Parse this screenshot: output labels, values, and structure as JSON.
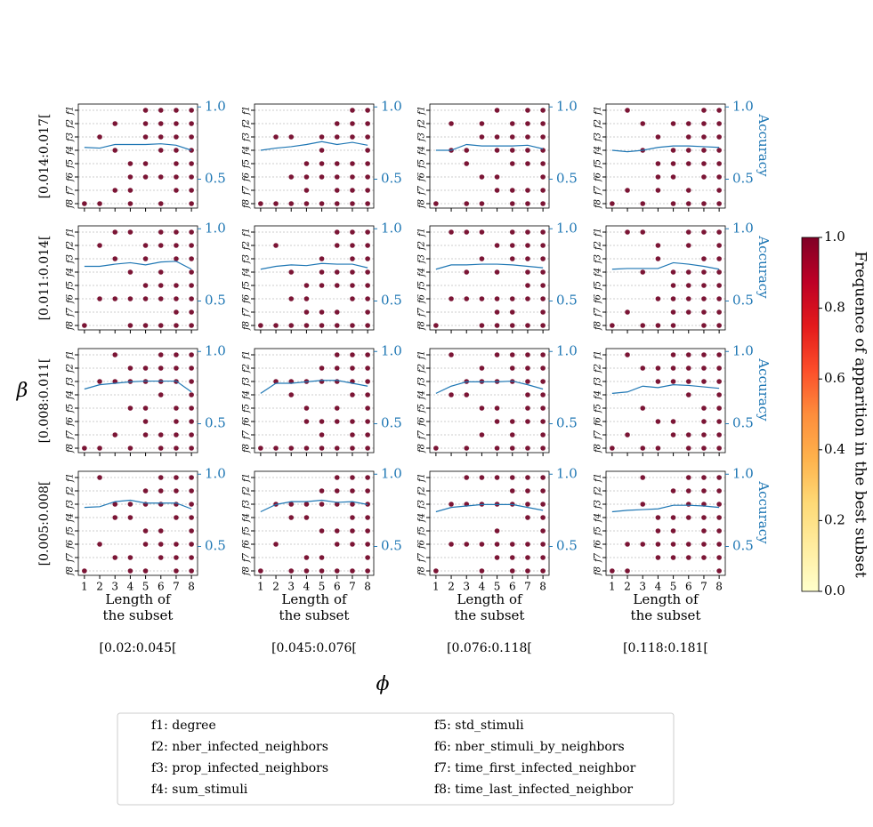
{
  "chart_data": {
    "type": "dot_matrix_grid",
    "row_axis_title": "β",
    "col_axis_title": "ϕ",
    "row_labels": [
      "[0.014:0.017[",
      "[0.011:0.014[",
      "[0.008:0.011[",
      "[0.005:0.008["
    ],
    "col_labels": [
      "[0.02:0.045[",
      "[0.045:0.076[",
      "[0.076:0.118[",
      "[0.118:0.181["
    ],
    "xlabel": [
      "Length of",
      "the subset"
    ],
    "y2label": "Accuracy",
    "xlim": [
      0.6,
      8.4
    ],
    "xticks": [
      1,
      2,
      3,
      4,
      5,
      6,
      7,
      8
    ],
    "feature_ticks": [
      "f1",
      "f2",
      "f3",
      "f4",
      "f5",
      "f6",
      "f7",
      "f8"
    ],
    "y2lim": [
      0.3,
      1.02
    ],
    "y2ticks": [
      0.5,
      {
        "value": 1,
        "label": "1.0"
      }
    ],
    "grid": true,
    "dot_color": "#7b1535",
    "line_color": "#1f77b4",
    "panels": [
      {
        "row": 0,
        "col": 0,
        "subsets": [
          [
            8
          ],
          [
            3,
            8
          ],
          [
            2,
            4,
            7
          ],
          [
            5,
            6,
            7,
            8
          ],
          [
            1,
            2,
            3,
            5,
            6
          ],
          [
            1,
            2,
            3,
            4,
            6,
            8
          ],
          [
            1,
            2,
            3,
            4,
            5,
            6,
            7
          ],
          [
            1,
            2,
            3,
            4,
            5,
            6,
            7,
            8
          ]
        ],
        "accuracy": [
          0.72,
          0.715,
          0.74,
          0.74,
          0.74,
          0.745,
          0.735,
          0.7
        ]
      },
      {
        "row": 0,
        "col": 1,
        "subsets": [
          [
            8
          ],
          [
            3,
            8
          ],
          [
            3,
            6,
            8
          ],
          [
            5,
            6,
            7,
            8
          ],
          [
            3,
            4,
            5,
            6,
            8
          ],
          [
            2,
            3,
            5,
            6,
            7,
            8
          ],
          [
            1,
            2,
            3,
            5,
            6,
            7,
            8
          ],
          [
            1,
            2,
            3,
            4,
            5,
            6,
            7,
            8
          ]
        ],
        "accuracy": [
          0.7,
          0.715,
          0.725,
          0.74,
          0.76,
          0.74,
          0.755,
          0.735
        ]
      },
      {
        "row": 0,
        "col": 2,
        "subsets": [
          [
            8
          ],
          [
            2,
            4
          ],
          [
            4,
            5,
            8
          ],
          [
            2,
            3,
            6,
            8
          ],
          [
            1,
            3,
            4,
            6,
            7
          ],
          [
            2,
            3,
            4,
            5,
            7,
            8
          ],
          [
            1,
            2,
            3,
            4,
            5,
            7,
            8
          ],
          [
            1,
            2,
            3,
            4,
            5,
            6,
            7,
            8
          ]
        ],
        "accuracy": [
          0.7,
          0.7,
          0.74,
          0.73,
          0.73,
          0.73,
          0.735,
          0.71
        ]
      },
      {
        "row": 0,
        "col": 3,
        "subsets": [
          [
            8
          ],
          [
            1,
            7
          ],
          [
            2,
            4,
            8
          ],
          [
            3,
            5,
            6,
            7
          ],
          [
            2,
            4,
            5,
            6,
            8
          ],
          [
            2,
            3,
            4,
            5,
            7,
            8
          ],
          [
            1,
            2,
            3,
            4,
            5,
            6,
            8
          ],
          [
            1,
            2,
            3,
            4,
            5,
            6,
            7,
            8
          ]
        ],
        "accuracy": [
          0.7,
          0.69,
          0.7,
          0.72,
          0.73,
          0.73,
          0.725,
          0.72
        ]
      },
      {
        "row": 1,
        "col": 0,
        "subsets": [
          [
            8
          ],
          [
            2,
            6
          ],
          [
            1,
            3,
            6
          ],
          [
            1,
            4,
            6,
            8
          ],
          [
            2,
            3,
            5,
            6,
            8
          ],
          [
            1,
            2,
            4,
            5,
            6,
            8
          ],
          [
            1,
            2,
            3,
            5,
            6,
            7,
            8
          ],
          [
            1,
            2,
            3,
            4,
            5,
            6,
            7,
            8
          ]
        ],
        "accuracy": [
          0.74,
          0.74,
          0.755,
          0.765,
          0.75,
          0.77,
          0.775,
          0.72
        ]
      },
      {
        "row": 1,
        "col": 1,
        "subsets": [
          [
            8
          ],
          [
            2,
            8
          ],
          [
            4,
            6,
            8
          ],
          [
            5,
            6,
            7,
            8
          ],
          [
            3,
            4,
            5,
            7,
            8
          ],
          [
            1,
            2,
            4,
            5,
            7,
            8
          ],
          [
            1,
            2,
            3,
            4,
            5,
            6,
            8
          ],
          [
            1,
            2,
            3,
            4,
            5,
            6,
            7,
            8
          ]
        ],
        "accuracy": [
          0.72,
          0.74,
          0.75,
          0.745,
          0.76,
          0.755,
          0.755,
          0.73
        ]
      },
      {
        "row": 1,
        "col": 2,
        "subsets": [
          [
            8
          ],
          [
            1,
            6
          ],
          [
            1,
            4,
            6
          ],
          [
            1,
            3,
            6,
            8
          ],
          [
            2,
            4,
            6,
            7,
            8
          ],
          [
            1,
            2,
            3,
            6,
            7,
            8
          ],
          [
            1,
            2,
            3,
            4,
            5,
            6,
            8
          ],
          [
            1,
            2,
            3,
            4,
            5,
            6,
            7,
            8
          ]
        ],
        "accuracy": [
          0.72,
          0.75,
          0.75,
          0.755,
          0.755,
          0.75,
          0.74,
          0.73
        ]
      },
      {
        "row": 1,
        "col": 3,
        "subsets": [
          [
            8
          ],
          [
            1,
            7
          ],
          [
            1,
            4,
            8
          ],
          [
            2,
            3,
            6,
            8
          ],
          [
            4,
            5,
            6,
            7,
            8
          ],
          [
            1,
            2,
            4,
            5,
            6,
            7
          ],
          [
            1,
            3,
            4,
            5,
            6,
            7,
            8
          ],
          [
            1,
            2,
            3,
            4,
            5,
            6,
            7,
            8
          ]
        ],
        "accuracy": [
          0.72,
          0.725,
          0.725,
          0.725,
          0.765,
          0.755,
          0.74,
          0.72
        ]
      },
      {
        "row": 2,
        "col": 0,
        "subsets": [
          [
            8
          ],
          [
            3,
            8
          ],
          [
            1,
            3,
            7
          ],
          [
            2,
            3,
            5,
            8
          ],
          [
            2,
            3,
            5,
            6,
            7
          ],
          [
            1,
            2,
            3,
            4,
            7,
            8
          ],
          [
            1,
            2,
            3,
            5,
            6,
            7,
            8
          ],
          [
            1,
            2,
            3,
            4,
            5,
            6,
            7,
            8
          ]
        ],
        "accuracy": [
          0.74,
          0.77,
          0.78,
          0.79,
          0.795,
          0.795,
          0.795,
          0.72
        ]
      },
      {
        "row": 2,
        "col": 1,
        "subsets": [
          [
            8
          ],
          [
            3,
            8
          ],
          [
            3,
            4,
            8
          ],
          [
            3,
            5,
            6,
            8
          ],
          [
            2,
            3,
            6,
            7,
            8
          ],
          [
            1,
            2,
            3,
            5,
            6,
            8
          ],
          [
            1,
            2,
            3,
            4,
            6,
            7,
            8
          ],
          [
            1,
            2,
            3,
            4,
            5,
            6,
            7,
            8
          ]
        ],
        "accuracy": [
          0.71,
          0.78,
          0.78,
          0.79,
          0.8,
          0.8,
          0.78,
          0.76
        ]
      },
      {
        "row": 2,
        "col": 2,
        "subsets": [
          [
            8
          ],
          [
            1,
            4
          ],
          [
            3,
            4,
            8
          ],
          [
            2,
            3,
            5,
            7
          ],
          [
            1,
            3,
            5,
            6,
            8
          ],
          [
            1,
            2,
            3,
            6,
            7,
            8
          ],
          [
            1,
            2,
            3,
            4,
            5,
            6,
            8
          ],
          [
            1,
            2,
            3,
            4,
            5,
            6,
            7,
            8
          ]
        ],
        "accuracy": [
          0.71,
          0.76,
          0.79,
          0.79,
          0.79,
          0.795,
          0.77,
          0.74
        ]
      },
      {
        "row": 2,
        "col": 3,
        "subsets": [
          [
            8
          ],
          [
            1,
            7
          ],
          [
            2,
            5,
            8
          ],
          [
            2,
            3,
            6,
            8
          ],
          [
            1,
            2,
            3,
            6,
            7
          ],
          [
            1,
            2,
            3,
            4,
            7,
            8
          ],
          [
            1,
            2,
            3,
            5,
            6,
            7,
            8
          ],
          [
            1,
            2,
            3,
            4,
            5,
            6,
            7,
            8
          ]
        ],
        "accuracy": [
          0.71,
          0.72,
          0.76,
          0.75,
          0.77,
          0.765,
          0.755,
          0.745
        ]
      },
      {
        "row": 3,
        "col": 0,
        "subsets": [
          [
            8
          ],
          [
            1,
            6
          ],
          [
            3,
            4,
            7
          ],
          [
            3,
            4,
            7,
            8
          ],
          [
            2,
            3,
            5,
            6,
            8
          ],
          [
            1,
            2,
            3,
            5,
            6,
            7
          ],
          [
            1,
            2,
            3,
            4,
            6,
            7,
            8
          ],
          [
            1,
            2,
            3,
            4,
            5,
            6,
            7,
            8
          ]
        ],
        "accuracy": [
          0.77,
          0.775,
          0.81,
          0.82,
          0.8,
          0.8,
          0.8,
          0.76
        ]
      },
      {
        "row": 3,
        "col": 1,
        "subsets": [
          [
            8
          ],
          [
            3,
            6
          ],
          [
            3,
            4,
            8
          ],
          [
            3,
            4,
            7,
            8
          ],
          [
            2,
            3,
            5,
            7,
            8
          ],
          [
            1,
            2,
            3,
            5,
            6,
            8
          ],
          [
            1,
            2,
            3,
            4,
            5,
            6,
            8
          ],
          [
            1,
            2,
            3,
            4,
            5,
            6,
            7,
            8
          ]
        ],
        "accuracy": [
          0.74,
          0.79,
          0.81,
          0.81,
          0.82,
          0.805,
          0.81,
          0.79
        ]
      },
      {
        "row": 3,
        "col": 2,
        "subsets": [
          [
            8
          ],
          [
            3,
            6
          ],
          [
            1,
            3,
            6
          ],
          [
            1,
            3,
            6,
            8
          ],
          [
            1,
            3,
            5,
            6,
            7
          ],
          [
            1,
            2,
            3,
            6,
            7,
            8
          ],
          [
            1,
            2,
            3,
            4,
            6,
            7,
            8
          ],
          [
            1,
            2,
            3,
            4,
            5,
            6,
            7,
            8
          ]
        ],
        "accuracy": [
          0.74,
          0.77,
          0.78,
          0.79,
          0.79,
          0.79,
          0.77,
          0.75
        ]
      },
      {
        "row": 3,
        "col": 3,
        "subsets": [
          [
            8
          ],
          [
            6,
            8
          ],
          [
            1,
            3,
            6
          ],
          [
            4,
            5,
            6,
            7
          ],
          [
            2,
            4,
            5,
            6,
            7
          ],
          [
            1,
            2,
            3,
            4,
            6,
            7
          ],
          [
            1,
            2,
            3,
            4,
            5,
            6,
            7
          ],
          [
            1,
            2,
            3,
            4,
            5,
            6,
            7,
            8
          ]
        ],
        "accuracy": [
          0.74,
          0.75,
          0.755,
          0.76,
          0.785,
          0.785,
          0.78,
          0.77
        ]
      }
    ],
    "colorbar": {
      "label": "Frequence of apparition in the best subset",
      "lim": [
        0,
        1
      ],
      "ticks": [
        {
          "value": 0,
          "label": "0.0"
        },
        0.2,
        0.4,
        0.6,
        0.8,
        {
          "value": 1,
          "label": "1.0"
        }
      ],
      "colors": [
        "#ffffcc",
        "#ffeda0",
        "#fed976",
        "#feb24c",
        "#fd8d3c",
        "#fc4e2a",
        "#e31a1c",
        "#bd0026",
        "#800026"
      ]
    },
    "legend": [
      "f1: degree",
      "f2: nber_infected_neighbors",
      "f3: prop_infected_neighbors",
      "f4: sum_stimuli",
      "f5: std_stimuli",
      "f6: nber_stimuli_by_neighbors",
      "f7: time_first_infected_neighbor",
      "f8: time_last_infected_neighbor"
    ]
  }
}
